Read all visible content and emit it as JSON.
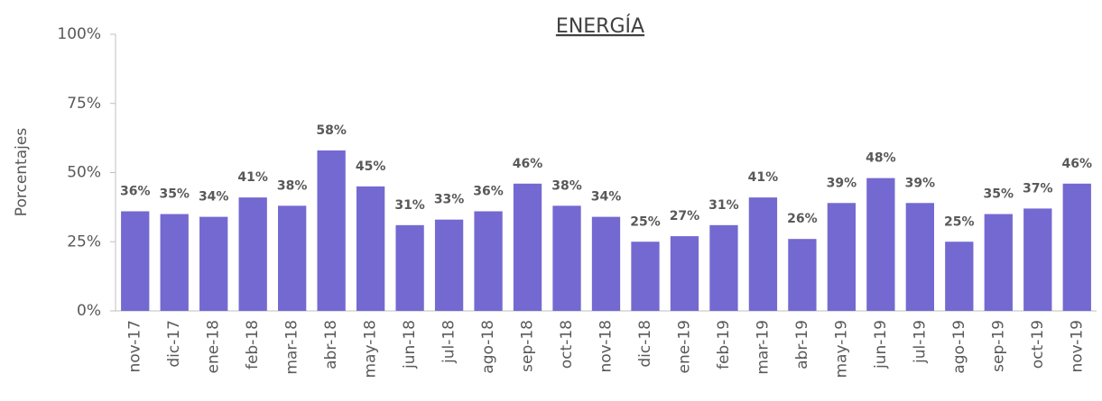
{
  "chart_data": {
    "type": "bar",
    "title": "ENERGÍA",
    "y_label": "Porcentajes",
    "categories": [
      "nov-17",
      "dic-17",
      "ene-18",
      "feb-18",
      "mar-18",
      "abr-18",
      "may-18",
      "jun-18",
      "jul-18",
      "ago-18",
      "sep-18",
      "oct-18",
      "nov-18",
      "dic-18",
      "ene-19",
      "feb-19",
      "mar-19",
      "abr-19",
      "may-19",
      "jun-19",
      "jul-19",
      "ago-19",
      "sep-19",
      "oct-19",
      "nov-19"
    ],
    "values": [
      36,
      35,
      34,
      41,
      38,
      58,
      45,
      31,
      33,
      36,
      46,
      38,
      34,
      25,
      27,
      31,
      41,
      26,
      39,
      48,
      39,
      25,
      35,
      37,
      46
    ],
    "value_labels": [
      "36%",
      "35%",
      "34%",
      "41%",
      "38%",
      "58%",
      "45%",
      "31%",
      "33%",
      "36%",
      "46%",
      "38%",
      "34%",
      "25%",
      "27%",
      "31%",
      "41%",
      "26%",
      "39%",
      "48%",
      "39%",
      "25%",
      "35%",
      "37%",
      "46%"
    ],
    "color": "#7469d1",
    "ylim": [
      0,
      100
    ],
    "yticks": [
      {
        "value": 0,
        "label": "0%"
      },
      {
        "value": 25,
        "label": "25%"
      },
      {
        "value": 50,
        "label": "50%"
      },
      {
        "value": 75,
        "label": "75%"
      },
      {
        "value": 100,
        "label": "100%"
      }
    ]
  }
}
